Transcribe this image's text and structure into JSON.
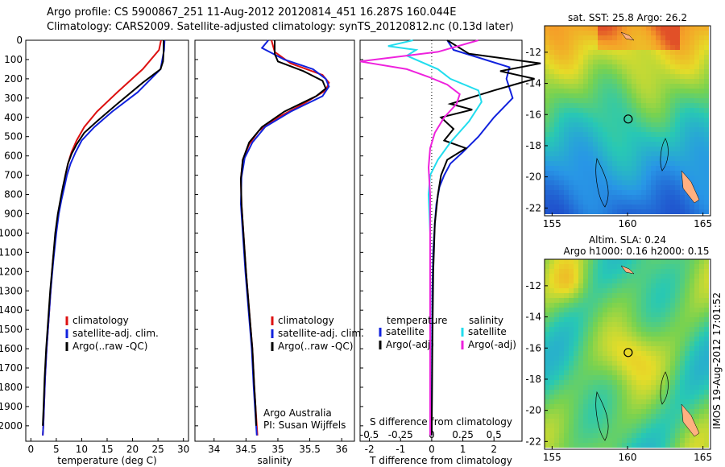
{
  "title": {
    "line1": "Argo profile: CS 5900867_251 11-Aug-2012 20120814_451 16.287S 160.044E",
    "line2": "Climatology: CARS2009. Satellite-adjusted climatology: synTS_20120812.nc (0.13d later)"
  },
  "credits": {
    "org": "Argo Australia",
    "pi": "PI: Susan Wijffels",
    "stamp": "IMOS 19-Aug-2012 17:01:52"
  },
  "colors": {
    "climatology": "#dd1111",
    "satellite": "#1122dd",
    "argo": "#000000",
    "t_satellite": "#22ddee",
    "s_argo": "#ee22dd"
  },
  "chart_data": [
    {
      "type": "line",
      "id": "temperature",
      "xlabel": "temperature (deg C)",
      "ylabel": "",
      "xlim": [
        -1,
        31
      ],
      "ylim": [
        2080,
        0
      ],
      "xticks": [
        "0",
        "5",
        "10",
        "15",
        "20",
        "25",
        "30"
      ],
      "yticks": [
        "0",
        "100",
        "200",
        "300",
        "400",
        "500",
        "600",
        "700",
        "800",
        "900",
        "1000",
        "1100",
        "1200",
        "1300",
        "1400",
        "1500",
        "1600",
        "1700",
        "1800",
        "1900",
        "2000"
      ],
      "legend": [
        "climatology",
        "satellite-adj. clim.",
        "Argo(..raw -QC)"
      ],
      "series": [
        {
          "name": "climatology",
          "color": "#dd1111",
          "x": [
            25.6,
            25.2,
            22,
            17,
            13,
            10.5,
            9,
            8,
            7.3,
            6.8,
            6.4,
            5.9,
            5.4,
            4.9,
            4.3,
            3.9,
            3.5,
            3.1,
            2.8,
            2.6,
            2.45,
            2.35
          ],
          "y": [
            0,
            50,
            150,
            270,
            370,
            450,
            520,
            580,
            640,
            700,
            760,
            830,
            900,
            1000,
            1150,
            1300,
            1450,
            1600,
            1750,
            1900,
            2000,
            2050
          ]
        },
        {
          "name": "satellite-adj. clim.",
          "color": "#1122dd",
          "x": [
            26.3,
            26.2,
            25.5,
            21,
            16,
            12.5,
            10,
            8.8,
            7.8,
            7.1,
            6.6,
            6.0,
            5.5,
            5.0,
            4.4,
            3.9,
            3.5,
            3.1,
            2.8,
            2.6,
            2.45,
            2.35
          ],
          "y": [
            0,
            50,
            150,
            270,
            370,
            450,
            520,
            580,
            640,
            700,
            760,
            830,
            900,
            1000,
            1150,
            1300,
            1450,
            1600,
            1750,
            1900,
            2000,
            2050
          ]
        },
        {
          "name": "Argo(..raw -QC)",
          "color": "#000000",
          "x": [
            26.1,
            26.1,
            26.0,
            25.5,
            22,
            17,
            13,
            10.5,
            9,
            8,
            7.3,
            6.8,
            6.3,
            5.8,
            5.3,
            4.8,
            4.3,
            3.8,
            3.4,
            3.0,
            2.7,
            2.5,
            2.35
          ],
          "y": [
            0,
            60,
            110,
            150,
            220,
            330,
            420,
            480,
            540,
            590,
            640,
            700,
            760,
            830,
            900,
            1000,
            1150,
            1300,
            1450,
            1600,
            1750,
            1900,
            2000
          ]
        }
      ]
    },
    {
      "type": "line",
      "id": "salinity",
      "xlabel": "salinity",
      "xlim": [
        33.7,
        36.2
      ],
      "ylim": [
        2080,
        0
      ],
      "xticks": [
        "34",
        "34.5",
        "35",
        "35.5",
        "36"
      ],
      "legend": [
        "climatology",
        "satellite-adj. clim.",
        "Argo(..raw -QC)"
      ],
      "series": [
        {
          "name": "climatology",
          "color": "#dd1111",
          "x": [
            34.9,
            34.95,
            35.2,
            35.7,
            35.8,
            35.75,
            35.4,
            35.0,
            34.7,
            34.55,
            34.45,
            34.42,
            34.43,
            34.46,
            34.5,
            34.55,
            34.6,
            34.63,
            34.65,
            34.67,
            34.68
          ],
          "y": [
            0,
            60,
            120,
            180,
            220,
            260,
            330,
            400,
            470,
            540,
            620,
            720,
            850,
            1000,
            1200,
            1400,
            1600,
            1800,
            1900,
            2000,
            2050
          ]
        },
        {
          "name": "satellite-adj. clim.",
          "color": "#1122dd",
          "x": [
            34.85,
            34.75,
            35.1,
            35.55,
            35.75,
            35.8,
            35.7,
            35.2,
            34.8,
            34.6,
            34.48,
            34.43,
            34.42,
            34.45,
            34.49,
            34.54,
            34.59,
            34.62,
            34.64,
            34.66,
            34.67
          ],
          "y": [
            0,
            40,
            100,
            150,
            200,
            240,
            290,
            370,
            450,
            530,
            610,
            710,
            850,
            1000,
            1200,
            1400,
            1600,
            1800,
            1900,
            2000,
            2050
          ]
        },
        {
          "name": "Argo(..raw -QC)",
          "color": "#000000",
          "x": [
            34.95,
            34.95,
            35.0,
            35.4,
            35.7,
            35.75,
            35.6,
            35.1,
            34.75,
            34.55,
            34.45,
            34.42,
            34.43,
            34.46,
            34.5,
            34.55,
            34.6,
            34.63,
            34.65,
            34.66
          ],
          "y": [
            0,
            70,
            110,
            160,
            210,
            250,
            290,
            370,
            450,
            530,
            620,
            720,
            850,
            1000,
            1200,
            1400,
            1600,
            1800,
            1900,
            2000
          ]
        }
      ]
    },
    {
      "type": "line",
      "id": "difference",
      "xlabel": "T difference from climatology",
      "xlabel2": "S difference from climatology",
      "xlim": [
        -2.3,
        2.9
      ],
      "ylim": [
        2080,
        0
      ],
      "xticks": [
        "-2",
        "-1",
        "0",
        "1",
        "2"
      ],
      "xticks_top": [
        "-0.5",
        "-0.25",
        "0",
        "0.25",
        "0.5"
      ],
      "legend_t_title": "temperature",
      "legend_s_title": "salinity",
      "legend": [
        "satellite",
        "Argo(-adj)",
        "satellite",
        "Argo(-adj)"
      ],
      "series": [
        {
          "name": "satellite",
          "group": "temperature",
          "color": "#1122dd",
          "x": [
            0.5,
            0.7,
            1.5,
            2.5,
            2.4,
            2.6,
            2.0,
            1.5,
            1.0,
            0.6,
            0.4,
            0.25,
            0.15,
            0.1,
            0.05,
            0.02,
            0.01,
            0.0
          ],
          "y": [
            0,
            50,
            90,
            140,
            200,
            300,
            400,
            500,
            580,
            640,
            700,
            760,
            850,
            950,
            1100,
            1300,
            1600,
            2050
          ]
        },
        {
          "name": "Argo(-adj)",
          "group": "temperature",
          "color": "#000000",
          "x": [
            0.5,
            1.2,
            3.5,
            2.2,
            3.3,
            2.0,
            0.6,
            1.3,
            0.3,
            0.7,
            0.4,
            1.1,
            0.5,
            0.3,
            0.2,
            0.1,
            0.05,
            0.02,
            0.0
          ],
          "y": [
            0,
            70,
            120,
            160,
            200,
            260,
            330,
            360,
            400,
            460,
            520,
            560,
            620,
            700,
            800,
            950,
            1200,
            1600,
            2050
          ]
        },
        {
          "name": "satellite",
          "group": "salinity",
          "color": "#22ddee",
          "x": [
            -0.6,
            -1.4,
            -0.5,
            -0.8,
            0.2,
            0.6,
            1.5,
            1.6,
            1.2,
            0.6,
            0.2,
            -0.05,
            -0.1,
            -0.05,
            -0.05,
            -0.05,
            -0.05
          ],
          "y": [
            0,
            30,
            50,
            80,
            150,
            200,
            260,
            320,
            420,
            530,
            620,
            700,
            800,
            1000,
            1300,
            1700,
            2050
          ]
        },
        {
          "name": "Argo(-adj)",
          "group": "salinity",
          "color": "#ee22dd",
          "x": [
            1.5,
            0.2,
            -2.3,
            -0.8,
            -0.1,
            0.5,
            0.9,
            0.8,
            0.4,
            0.1,
            -0.05,
            -0.1,
            -0.05,
            -0.05,
            -0.05,
            -0.05
          ],
          "y": [
            0,
            60,
            110,
            150,
            190,
            230,
            280,
            330,
            400,
            480,
            560,
            660,
            800,
            1100,
            1500,
            2050
          ]
        }
      ]
    },
    {
      "type": "heatmap",
      "id": "sst-map",
      "title": "sat. SST: 25.8 Argo: 26.2",
      "xticks": [
        "155",
        "160",
        "165"
      ],
      "yticks": [
        "-12",
        "-14",
        "-16",
        "-18",
        "-20",
        "-22"
      ],
      "xlim": [
        154.5,
        165.5
      ],
      "ylim": [
        -22.5,
        -10.3
      ],
      "marker": {
        "lon": 160.044,
        "lat": -16.287
      }
    },
    {
      "type": "heatmap",
      "id": "sla-map",
      "title": "Altim. SLA: 0.24",
      "subtitle": "Argo h1000: 0.16 h2000: 0.15",
      "xticks": [
        "155",
        "160",
        "165"
      ],
      "yticks": [
        "-12",
        "-14",
        "-16",
        "-18",
        "-20",
        "-22"
      ],
      "xlim": [
        154.5,
        165.5
      ],
      "ylim": [
        -22.5,
        -10.3
      ],
      "marker": {
        "lon": 160.044,
        "lat": -16.287
      }
    }
  ]
}
